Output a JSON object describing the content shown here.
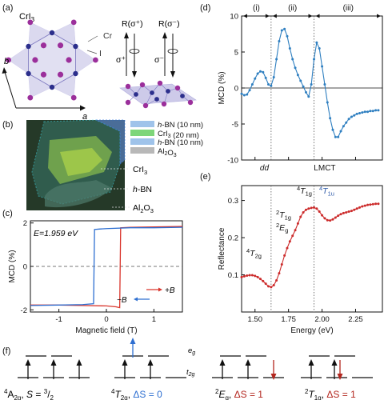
{
  "panels": {
    "a": {
      "label": "(a)",
      "material": "CrI",
      "material_sub": "3",
      "cr_label": "Cr",
      "i_label": "I",
      "axis_a": "a",
      "axis_b": "b",
      "r_sigma_plus": "R(σ⁺)",
      "r_sigma_minus": "R(σ⁻)",
      "sigma_plus": "σ⁺",
      "sigma_minus": "σ⁻"
    },
    "b": {
      "label": "(b)",
      "legend": [
        "h-BN (10 nm)",
        "CrI3 (20 nm)",
        "h-BN (10 nm)",
        "Al2O3"
      ],
      "legend_colors": [
        "#9fc3ea",
        "#7ed67a",
        "#9fc3ea",
        "#b8b8b8"
      ],
      "callouts": [
        "CrI3",
        "h-BN",
        "Al2O3"
      ]
    },
    "c": {
      "label": "(c)",
      "annotation": "E=1.959 eV",
      "legend_plus": "+B",
      "legend_minus": "−B",
      "color_plus": "#d9342b",
      "color_minus": "#2e6fd1",
      "xlabel": "Magnetic field (T)",
      "ylabel": "MCD (%)",
      "xticks": [
        "-1",
        "0",
        "1"
      ],
      "yticks": [
        "2",
        "0",
        "-2"
      ]
    },
    "d": {
      "label": "(d)",
      "regions": [
        "(i)",
        "(ii)",
        "(iii)"
      ],
      "region_labels": [
        "dd",
        "LMCT"
      ],
      "ylabel": "MCD (%)",
      "yticks": [
        "10",
        "5",
        "0",
        "-5",
        "-10"
      ],
      "color": "#2f7fc0"
    },
    "e": {
      "label": "(e)",
      "xlabel": "Energy (eV)",
      "ylabel": "Reflectance",
      "xticks": [
        "1.50",
        "1.75",
        "2.00",
        "2.25"
      ],
      "yticks": [
        "0.3",
        "0.2",
        "0.1"
      ],
      "color": "#cc2b2b",
      "annotations": [
        "4T2g",
        "2T1g",
        "2Eg",
        "4T1g",
        "4T1u"
      ]
    },
    "f": {
      "label": "(f)",
      "eg": "eg",
      "t2g": "t2g",
      "states": [
        "⁴A₂g, S = ³/₂",
        "⁴T₂g, ΔS = 0",
        "²Eg, ΔS = 1",
        "²T₁g, ΔS = 1"
      ]
    }
  },
  "chart_data": [
    {
      "type": "line",
      "panel": "c",
      "xlabel": "Magnetic field (T)",
      "ylabel": "MCD (%)",
      "xlim": [
        -1.6,
        1.6
      ],
      "ylim": [
        -2.1,
        2.1
      ],
      "series": [
        {
          "name": "+B",
          "x": [
            -1.6,
            -1.0,
            -0.5,
            0.0,
            0.2,
            0.28,
            0.3,
            0.5,
            1.0,
            1.6
          ],
          "y": [
            -1.78,
            -1.78,
            -1.8,
            -1.82,
            -1.86,
            -1.9,
            1.78,
            1.8,
            1.82,
            1.84
          ]
        },
        {
          "name": "−B",
          "x": [
            1.6,
            1.0,
            0.5,
            0.0,
            -0.15,
            -0.25,
            -0.27,
            -0.5,
            -1.0,
            -1.6
          ],
          "y": [
            1.8,
            1.78,
            1.78,
            1.74,
            1.72,
            1.7,
            -1.72,
            -1.76,
            -1.78,
            -1.8
          ]
        }
      ]
    },
    {
      "type": "line",
      "panel": "d",
      "ylabel": "MCD (%)",
      "xlim": [
        1.4,
        2.45
      ],
      "ylim": [
        -10,
        10
      ],
      "x": [
        1.4,
        1.42,
        1.44,
        1.46,
        1.48,
        1.5,
        1.52,
        1.54,
        1.56,
        1.58,
        1.6,
        1.62,
        1.64,
        1.66,
        1.68,
        1.7,
        1.72,
        1.74,
        1.76,
        1.78,
        1.8,
        1.82,
        1.84,
        1.86,
        1.88,
        1.9,
        1.92,
        1.94,
        1.96,
        1.98,
        2.0,
        2.02,
        2.04,
        2.06,
        2.08,
        2.1,
        2.12,
        2.14,
        2.16,
        2.18,
        2.2,
        2.22,
        2.24,
        2.26,
        2.28,
        2.3,
        2.32,
        2.34,
        2.36,
        2.38,
        2.4,
        2.42
      ],
      "y": [
        -0.8,
        -1.0,
        -0.9,
        -0.3,
        0.5,
        1.3,
        2.0,
        2.3,
        2.2,
        1.4,
        0.5,
        0.3,
        1.5,
        4.0,
        6.5,
        8.0,
        8.2,
        7.2,
        5.5,
        4.0,
        2.8,
        1.8,
        1.0,
        0.2,
        -0.6,
        -1.2,
        0.5,
        4.0,
        6.3,
        5.5,
        3.0,
        0.5,
        -2.0,
        -4.2,
        -5.8,
        -6.8,
        -6.8,
        -6.0,
        -5.3,
        -4.8,
        -4.3,
        -4.0,
        -3.8,
        -3.6,
        -3.5,
        -3.4,
        -3.3,
        -3.3,
        -3.2,
        -3.2,
        -3.1,
        -3.1
      ]
    },
    {
      "type": "line",
      "panel": "e",
      "xlabel": "Energy (eV)",
      "ylabel": "Reflectance",
      "xlim": [
        1.4,
        2.45
      ],
      "ylim": [
        0.0,
        0.34
      ],
      "x": [
        1.4,
        1.42,
        1.44,
        1.46,
        1.48,
        1.5,
        1.52,
        1.54,
        1.56,
        1.58,
        1.6,
        1.62,
        1.64,
        1.66,
        1.68,
        1.7,
        1.72,
        1.74,
        1.76,
        1.78,
        1.8,
        1.82,
        1.84,
        1.86,
        1.88,
        1.9,
        1.92,
        1.94,
        1.96,
        1.98,
        2.0,
        2.02,
        2.04,
        2.06,
        2.08,
        2.1,
        2.12,
        2.14,
        2.16,
        2.18,
        2.2,
        2.22,
        2.24,
        2.26,
        2.28,
        2.3,
        2.32,
        2.34,
        2.36,
        2.38,
        2.4,
        2.42
      ],
      "y": [
        0.094,
        0.096,
        0.098,
        0.099,
        0.099,
        0.097,
        0.094,
        0.089,
        0.083,
        0.076,
        0.069,
        0.067,
        0.072,
        0.085,
        0.104,
        0.128,
        0.152,
        0.172,
        0.19,
        0.205,
        0.22,
        0.238,
        0.256,
        0.268,
        0.275,
        0.278,
        0.28,
        0.281,
        0.278,
        0.27,
        0.26,
        0.252,
        0.247,
        0.246,
        0.249,
        0.254,
        0.259,
        0.263,
        0.266,
        0.268,
        0.27,
        0.272,
        0.275,
        0.278,
        0.281,
        0.284,
        0.286,
        0.288,
        0.289,
        0.29,
        0.291,
        0.291
      ]
    }
  ]
}
